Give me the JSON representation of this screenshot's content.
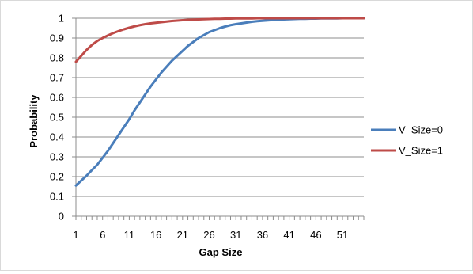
{
  "chart_data": {
    "type": "line",
    "title": "",
    "xlabel": "Gap Size",
    "ylabel": "Probability",
    "x_start": 1,
    "x_end": 55,
    "x_tick_labels": [
      "1",
      "6",
      "11",
      "16",
      "21",
      "26",
      "31",
      "36",
      "41",
      "46",
      "51"
    ],
    "x_tick_values": [
      1,
      6,
      11,
      16,
      21,
      26,
      31,
      36,
      41,
      46,
      51
    ],
    "ylim": [
      0,
      1
    ],
    "y_tick_values": [
      0,
      0.1,
      0.2,
      0.3,
      0.4,
      0.5,
      0.6,
      0.7,
      0.8,
      0.9,
      1
    ],
    "y_tick_labels": [
      "0",
      "0.1",
      "0.2",
      "0.3",
      "0.4",
      "0.5",
      "0.6",
      "0.7",
      "0.8",
      "0.9",
      "1"
    ],
    "grid": "horizontal",
    "legend_position": "right",
    "series": [
      {
        "name": "V_Size=0",
        "color": "#4a7ebb",
        "x": [
          1,
          2,
          3,
          4,
          5,
          6,
          7,
          8,
          9,
          10,
          11,
          12,
          13,
          14,
          15,
          16,
          17,
          18,
          19,
          20,
          21,
          22,
          23,
          24,
          25,
          26,
          27,
          28,
          29,
          30,
          31,
          32,
          33,
          34,
          35,
          36,
          37,
          38,
          39,
          40,
          41,
          42,
          43,
          44,
          45,
          46,
          47,
          48,
          49,
          50,
          51,
          52,
          53,
          54,
          55
        ],
        "values": [
          0.155,
          0.18,
          0.205,
          0.233,
          0.26,
          0.295,
          0.33,
          0.37,
          0.41,
          0.45,
          0.49,
          0.535,
          0.575,
          0.615,
          0.655,
          0.69,
          0.725,
          0.755,
          0.785,
          0.81,
          0.835,
          0.86,
          0.88,
          0.9,
          0.915,
          0.93,
          0.94,
          0.95,
          0.958,
          0.965,
          0.97,
          0.974,
          0.978,
          0.982,
          0.985,
          0.987,
          0.989,
          0.991,
          0.993,
          0.994,
          0.995,
          0.996,
          0.997,
          0.997,
          0.998,
          0.998,
          0.999,
          0.999,
          0.999,
          0.999,
          1.0,
          1.0,
          1.0,
          1.0,
          1.0
        ]
      },
      {
        "name": "V_Size=1",
        "color": "#be4b48",
        "x": [
          1,
          2,
          3,
          4,
          5,
          6,
          7,
          8,
          9,
          10,
          11,
          12,
          13,
          14,
          15,
          16,
          17,
          18,
          19,
          20,
          21,
          22,
          23,
          24,
          25,
          26,
          27,
          28,
          29,
          30,
          31,
          32,
          33,
          34,
          35,
          36,
          37,
          38,
          39,
          40,
          41,
          42,
          43,
          44,
          45,
          46,
          47,
          48,
          49,
          50,
          51,
          52,
          53,
          54,
          55
        ],
        "values": [
          0.78,
          0.81,
          0.84,
          0.865,
          0.885,
          0.9,
          0.913,
          0.925,
          0.935,
          0.944,
          0.952,
          0.959,
          0.965,
          0.97,
          0.974,
          0.977,
          0.98,
          0.983,
          0.986,
          0.988,
          0.99,
          0.992,
          0.993,
          0.994,
          0.995,
          0.996,
          0.997,
          0.997,
          0.998,
          0.998,
          0.999,
          0.999,
          0.999,
          0.999,
          1.0,
          1.0,
          1.0,
          1.0,
          1.0,
          1.0,
          1.0,
          1.0,
          1.0,
          1.0,
          1.0,
          1.0,
          1.0,
          1.0,
          1.0,
          1.0,
          1.0,
          1.0,
          1.0,
          1.0,
          1.0
        ]
      }
    ]
  }
}
